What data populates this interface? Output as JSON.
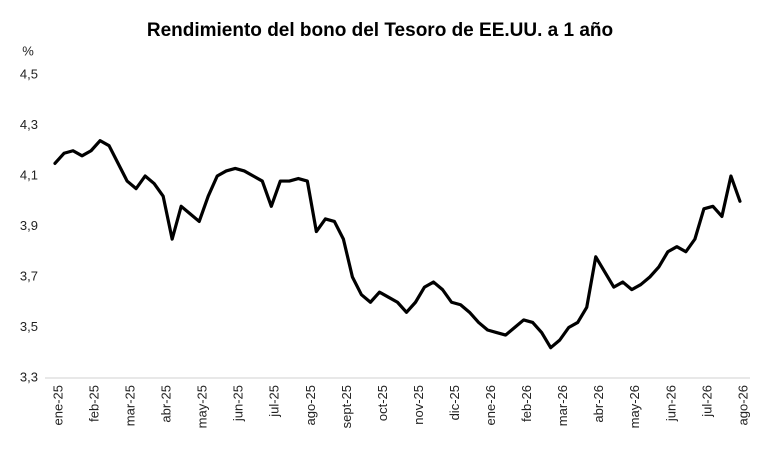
{
  "chart_data": {
    "type": "line",
    "title": "Rendimiento del bono del Tesoro de EE.UU. a 1 año",
    "y_label": "%",
    "categories": [
      "ene-25",
      null,
      null,
      null,
      "feb-25",
      null,
      null,
      null,
      "mar-25",
      null,
      null,
      null,
      "abr-25",
      null,
      null,
      null,
      "may-25",
      null,
      null,
      null,
      "jun-25",
      null,
      null,
      null,
      "jul-25",
      null,
      null,
      null,
      "ago-25",
      null,
      null,
      null,
      "sept-25",
      null,
      null,
      null,
      "oct-25",
      null,
      null,
      null,
      "nov-25",
      null,
      null,
      null,
      "dic-25",
      null,
      null,
      null,
      "ene-26",
      null,
      null,
      null,
      "feb-26",
      null,
      null,
      null,
      "mar-26",
      null,
      null,
      null,
      "abr-26",
      null,
      null,
      null,
      "may-26",
      null,
      null,
      null,
      "jun-26",
      null,
      null,
      null,
      "jul-26",
      null,
      null,
      null,
      "ago-26"
    ],
    "values": [
      4.15,
      4.19,
      4.2,
      4.18,
      4.2,
      4.24,
      4.22,
      4.15,
      4.08,
      4.05,
      4.1,
      4.07,
      4.02,
      3.85,
      3.98,
      3.95,
      3.92,
      4.02,
      4.1,
      4.12,
      4.13,
      4.12,
      4.1,
      4.08,
      3.98,
      4.08,
      4.08,
      4.09,
      4.08,
      3.88,
      3.93,
      3.92,
      3.85,
      3.7,
      3.63,
      3.6,
      3.64,
      3.62,
      3.6,
      3.56,
      3.6,
      3.66,
      3.68,
      3.65,
      3.6,
      3.59,
      3.56,
      3.52,
      3.49,
      3.48,
      3.47,
      3.5,
      3.53,
      3.52,
      3.48,
      3.42,
      3.45,
      3.5,
      3.52,
      3.58,
      3.78,
      3.72,
      3.66,
      3.68,
      3.65,
      3.67,
      3.7,
      3.74,
      3.8,
      3.82,
      3.8,
      3.85,
      3.97,
      3.98,
      3.94,
      4.1,
      4.0
    ],
    "color": "#000000",
    "ylim": [
      3.3,
      4.5
    ],
    "yticks": [
      {
        "value": 3.3,
        "label": "3,3"
      },
      {
        "value": 3.5,
        "label": "3,5"
      },
      {
        "value": 3.7,
        "label": "3,7"
      },
      {
        "value": 3.9,
        "label": "3,9"
      },
      {
        "value": 4.1,
        "label": "4,1"
      },
      {
        "value": 4.3,
        "label": "4,3"
      },
      {
        "value": 4.5,
        "label": "4,5"
      }
    ],
    "grid": false
  }
}
